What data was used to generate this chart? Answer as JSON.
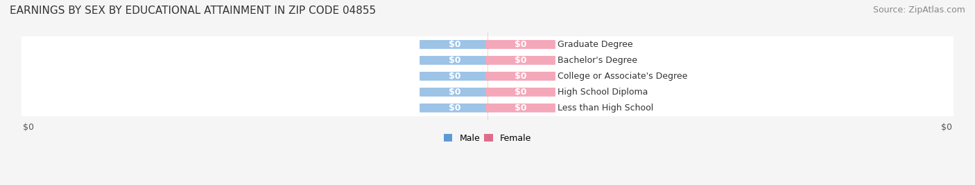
{
  "title": "EARNINGS BY SEX BY EDUCATIONAL ATTAINMENT IN ZIP CODE 04855",
  "source_text": "Source: ZipAtlas.com",
  "categories": [
    "Less than High School",
    "High School Diploma",
    "College or Associate's Degree",
    "Bachelor's Degree",
    "Graduate Degree"
  ],
  "male_values": [
    0,
    0,
    0,
    0,
    0
  ],
  "female_values": [
    0,
    0,
    0,
    0,
    0
  ],
  "male_color": "#9dc3e6",
  "female_color": "#f4a7b9",
  "male_label_color": "#ffffff",
  "female_label_color": "#ffffff",
  "bar_height": 0.55,
  "xlim": [
    -1,
    1
  ],
  "background_color": "#f0f0f0",
  "row_bg_color": "#e8e8e8",
  "title_fontsize": 11,
  "source_fontsize": 9,
  "label_fontsize": 9,
  "tick_fontsize": 9,
  "legend_fontsize": 9,
  "male_legend_color": "#5b9bd5",
  "female_legend_color": "#e06c8a"
}
